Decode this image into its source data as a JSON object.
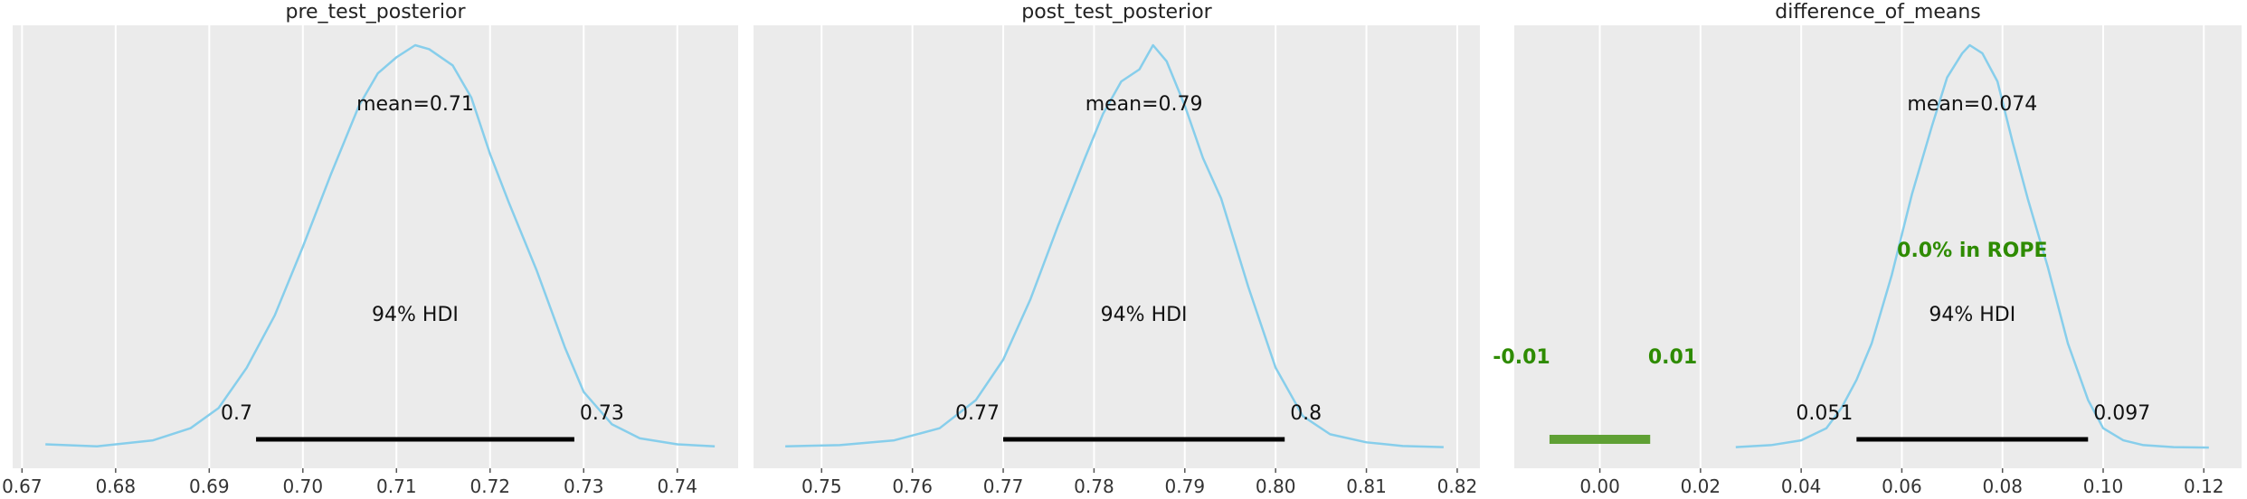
{
  "chart_data": [
    {
      "type": "area",
      "title": "pre_test_posterior",
      "xlim": [
        0.669,
        0.7465
      ],
      "xticks": [
        0.67,
        0.68,
        0.69,
        0.7,
        0.71,
        0.72,
        0.73,
        0.74
      ],
      "xtick_labels": [
        "0.67",
        "0.68",
        "0.69",
        "0.70",
        "0.71",
        "0.72",
        "0.73",
        "0.74"
      ],
      "grid": true,
      "kde_x": [
        0.6725,
        0.678,
        0.684,
        0.688,
        0.691,
        0.694,
        0.697,
        0.7,
        0.703,
        0.706,
        0.708,
        0.71,
        0.712,
        0.7135,
        0.716,
        0.718,
        0.72,
        0.722,
        0.725,
        0.728,
        0.73,
        0.733,
        0.736,
        0.74,
        0.744
      ],
      "kde_y": [
        0.01,
        0.005,
        0.02,
        0.05,
        0.1,
        0.2,
        0.33,
        0.5,
        0.68,
        0.85,
        0.93,
        0.97,
        1.0,
        0.99,
        0.95,
        0.87,
        0.73,
        0.61,
        0.44,
        0.25,
        0.14,
        0.06,
        0.025,
        0.01,
        0.005
      ],
      "mean_label": "mean=0.71",
      "hdi_label": "94% HDI",
      "hdi": [
        0.695,
        0.729
      ],
      "hdi_low_label": "0.7",
      "hdi_high_label": "0.73"
    },
    {
      "type": "area",
      "title": "post_test_posterior",
      "xlim": [
        0.7425,
        0.8225
      ],
      "xticks": [
        0.75,
        0.76,
        0.77,
        0.78,
        0.79,
        0.8,
        0.81,
        0.82
      ],
      "xtick_labels": [
        "0.75",
        "0.76",
        "0.77",
        "0.78",
        "0.79",
        "0.80",
        "0.81",
        "0.82"
      ],
      "grid": true,
      "kde_x": [
        0.746,
        0.752,
        0.758,
        0.763,
        0.767,
        0.77,
        0.773,
        0.776,
        0.779,
        0.781,
        0.783,
        0.785,
        0.7865,
        0.788,
        0.79,
        0.792,
        0.794,
        0.797,
        0.8,
        0.803,
        0.806,
        0.81,
        0.814,
        0.8185
      ],
      "kde_y": [
        0.005,
        0.008,
        0.02,
        0.05,
        0.12,
        0.22,
        0.37,
        0.55,
        0.72,
        0.83,
        0.91,
        0.94,
        1.0,
        0.96,
        0.85,
        0.72,
        0.62,
        0.4,
        0.2,
        0.08,
        0.035,
        0.015,
        0.006,
        0.003
      ],
      "mean_label": "mean=0.79",
      "hdi_label": "94% HDI",
      "hdi": [
        0.77,
        0.801
      ],
      "hdi_low_label": "0.77",
      "hdi_high_label": "0.8"
    },
    {
      "type": "area",
      "title": "difference_of_means",
      "xlim": [
        -0.017,
        0.1275
      ],
      "xticks": [
        0.0,
        0.02,
        0.04,
        0.06,
        0.08,
        0.1,
        0.12
      ],
      "xtick_labels": [
        "0.00",
        "0.02",
        "0.04",
        "0.06",
        "0.08",
        "0.10",
        "0.12"
      ],
      "grid": true,
      "kde_x": [
        0.027,
        0.034,
        0.04,
        0.045,
        0.048,
        0.051,
        0.054,
        0.058,
        0.062,
        0.066,
        0.069,
        0.072,
        0.0735,
        0.076,
        0.079,
        0.082,
        0.085,
        0.089,
        0.093,
        0.097,
        0.1,
        0.104,
        0.108,
        0.114,
        0.121
      ],
      "kde_y": [
        0.003,
        0.008,
        0.02,
        0.05,
        0.1,
        0.17,
        0.26,
        0.43,
        0.63,
        0.8,
        0.92,
        0.98,
        1.0,
        0.98,
        0.91,
        0.76,
        0.62,
        0.45,
        0.26,
        0.12,
        0.05,
        0.02,
        0.008,
        0.003,
        0.002
      ],
      "mean_label": "mean=0.074",
      "hdi_label": "94% HDI",
      "hdi": [
        0.051,
        0.097
      ],
      "hdi_low_label": "0.051",
      "hdi_high_label": "0.097",
      "rope": [
        -0.01,
        0.01
      ],
      "rope_low_label": "-0.01",
      "rope_high_label": "0.01",
      "rope_label": "0.0% in ROPE"
    }
  ],
  "colors": {
    "background": "#ebebeb",
    "kde": "#87ceeb",
    "hdi": "#000000",
    "rope_bar": "#5fa034",
    "rope_text": "#2e8b00"
  }
}
